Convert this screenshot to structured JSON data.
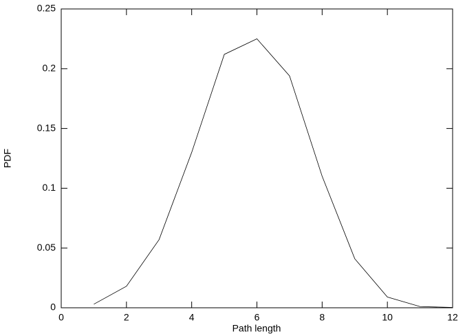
{
  "chart_data": {
    "type": "line",
    "xlabel": "Path length",
    "ylabel": "PDF",
    "x": [
      1,
      2,
      3,
      4,
      5,
      6,
      7,
      8,
      9,
      10,
      11,
      12
    ],
    "series": [
      {
        "color": "#000000",
        "values": [
          0.003,
          0.018,
          0.057,
          0.13,
          0.212,
          0.225,
          0.194,
          0.11,
          0.041,
          0.009,
          0.001,
          0.0003
        ]
      }
    ],
    "xlim": [
      0,
      12
    ],
    "xticks": [
      0,
      2,
      4,
      6,
      8,
      10,
      12
    ],
    "ylim": [
      0,
      0.25
    ],
    "yticks": [
      0,
      0.05,
      0.1,
      0.15,
      0.2,
      0.25
    ],
    "grid": false
  }
}
